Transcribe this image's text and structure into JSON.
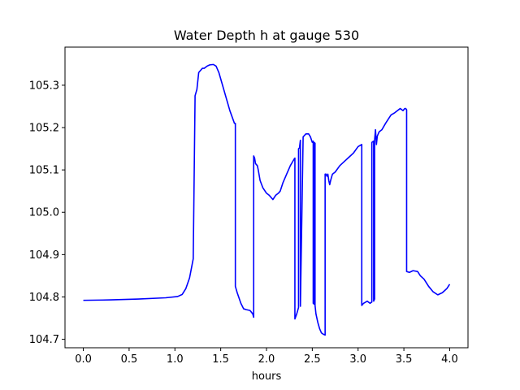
{
  "chart_data": {
    "type": "line",
    "title": "Water Depth h at gauge 530",
    "xlabel": "hours",
    "ylabel": "",
    "xlim": [
      -0.2,
      4.2
    ],
    "ylim": [
      104.68,
      105.39
    ],
    "xticks": [
      0.0,
      0.5,
      1.0,
      1.5,
      2.0,
      2.5,
      3.0,
      3.5,
      4.0
    ],
    "xtick_labels": [
      "0.0",
      "0.5",
      "1.0",
      "1.5",
      "2.0",
      "2.5",
      "3.0",
      "3.5",
      "4.0"
    ],
    "yticks": [
      104.7,
      104.8,
      104.9,
      105.0,
      105.1,
      105.2,
      105.3
    ],
    "ytick_labels": [
      "104.7",
      "104.8",
      "104.9",
      "105.0",
      "105.1",
      "105.2",
      "105.3"
    ],
    "grid": false,
    "series": [
      {
        "color": "#0000ff",
        "x": [
          0.0,
          0.3,
          0.6,
          0.9,
          1.03,
          1.08,
          1.12,
          1.16,
          1.2,
          1.22,
          1.22,
          1.24,
          1.26,
          1.28,
          1.3,
          1.32,
          1.35,
          1.38,
          1.42,
          1.45,
          1.48,
          1.52,
          1.56,
          1.6,
          1.65,
          1.66,
          1.66,
          1.68,
          1.72,
          1.75,
          1.78,
          1.82,
          1.85,
          1.86,
          1.86,
          1.87,
          1.88,
          1.9,
          1.91,
          1.93,
          1.96,
          2.0,
          2.03,
          2.05,
          2.07,
          2.1,
          2.13,
          2.15,
          2.18,
          2.22,
          2.26,
          2.3,
          2.31,
          2.31,
          2.33,
          2.35,
          2.35,
          2.36,
          2.37,
          2.37,
          2.4,
          2.43,
          2.46,
          2.48,
          2.5,
          2.51,
          2.51,
          2.52,
          2.52,
          2.53,
          2.53,
          2.54,
          2.56,
          2.58,
          2.6,
          2.62,
          2.64,
          2.64,
          2.65,
          2.66,
          2.67,
          2.68,
          2.69,
          2.7,
          2.72,
          2.75,
          2.8,
          2.85,
          2.9,
          2.95,
          3.0,
          3.04,
          3.04,
          3.06,
          3.1,
          3.13,
          3.15,
          3.15,
          3.17,
          3.17,
          3.18,
          3.18,
          3.19,
          3.2,
          3.21,
          3.23,
          3.26,
          3.3,
          3.33,
          3.36,
          3.4,
          3.43,
          3.46,
          3.49,
          3.51,
          3.52,
          3.53,
          3.53,
          3.56,
          3.6,
          3.65,
          3.68,
          3.72,
          3.77,
          3.82,
          3.87,
          3.92,
          3.97,
          4.0
        ],
        "y": [
          104.792,
          104.793,
          104.795,
          104.798,
          104.801,
          104.806,
          104.82,
          104.845,
          104.89,
          105.27,
          105.275,
          105.29,
          105.33,
          105.335,
          105.34,
          105.34,
          105.345,
          105.348,
          105.349,
          105.345,
          105.33,
          105.3,
          105.27,
          105.24,
          105.21,
          105.21,
          104.825,
          104.81,
          104.785,
          104.772,
          104.77,
          104.768,
          104.76,
          104.752,
          105.133,
          105.128,
          105.115,
          105.11,
          105.1,
          105.075,
          105.058,
          105.045,
          105.04,
          105.035,
          105.03,
          105.04,
          105.045,
          105.05,
          105.07,
          105.09,
          105.11,
          105.125,
          105.128,
          104.748,
          104.76,
          104.775,
          105.15,
          105.152,
          105.17,
          104.778,
          105.178,
          105.185,
          105.185,
          105.178,
          105.165,
          105.168,
          104.785,
          104.783,
          105.165,
          105.163,
          104.78,
          104.76,
          104.74,
          104.725,
          104.715,
          104.712,
          104.71,
          105.09,
          105.09,
          105.085,
          105.09,
          105.075,
          105.065,
          105.075,
          105.09,
          105.095,
          105.11,
          105.12,
          105.13,
          105.14,
          105.155,
          105.16,
          104.78,
          104.785,
          104.79,
          104.785,
          104.788,
          105.165,
          105.168,
          104.79,
          104.795,
          105.17,
          105.195,
          105.16,
          105.18,
          105.19,
          105.195,
          105.21,
          105.22,
          105.23,
          105.235,
          105.24,
          105.245,
          105.24,
          105.245,
          105.245,
          105.242,
          104.86,
          104.858,
          104.862,
          104.86,
          104.85,
          104.842,
          104.825,
          104.812,
          104.805,
          104.81,
          104.82,
          104.83
        ]
      }
    ]
  }
}
